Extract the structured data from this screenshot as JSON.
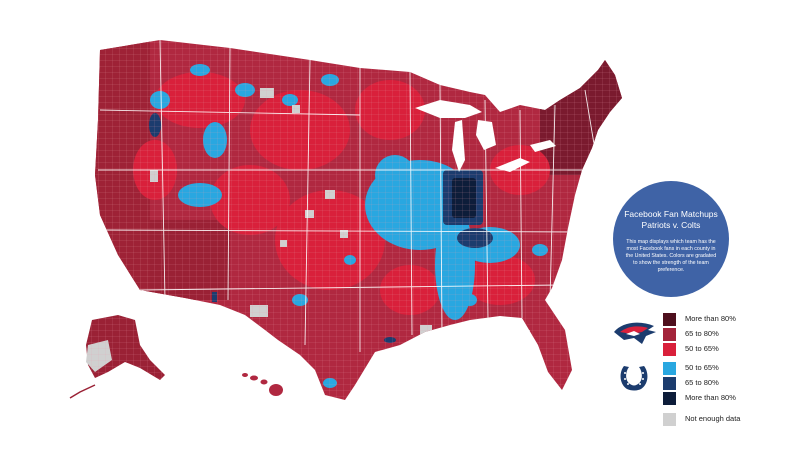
{
  "info": {
    "title_line1": "Facebook Fan Matchups",
    "title_line2": "Patriots v. Colts",
    "description": "This map displays which team has the most Facebook fans in each county in the United States. Colors are gradated to show the strength of the team preference."
  },
  "legend": {
    "patriots": [
      {
        "label": "More than 80%",
        "color": "#4e0f1d"
      },
      {
        "label": "65 to 80%",
        "color": "#a3233a"
      },
      {
        "label": "50 to 65%",
        "color": "#d9203b"
      }
    ],
    "colts": [
      {
        "label": "50 to 65%",
        "color": "#29a7e0"
      },
      {
        "label": "65 to 80%",
        "color": "#1c3c6e"
      },
      {
        "label": "More than 80%",
        "color": "#0d1d3a"
      }
    ],
    "no_data": {
      "label": "Not enough data",
      "color": "#d0d0d0"
    }
  },
  "logos": {
    "patriots": "patriots-logo-icon",
    "colts": "colts-horseshoe-icon"
  },
  "colors": {
    "base_map": "#b02840",
    "county_border": "#e8a0aa",
    "state_border": "#ffffff",
    "circle": "#3f63a6"
  }
}
